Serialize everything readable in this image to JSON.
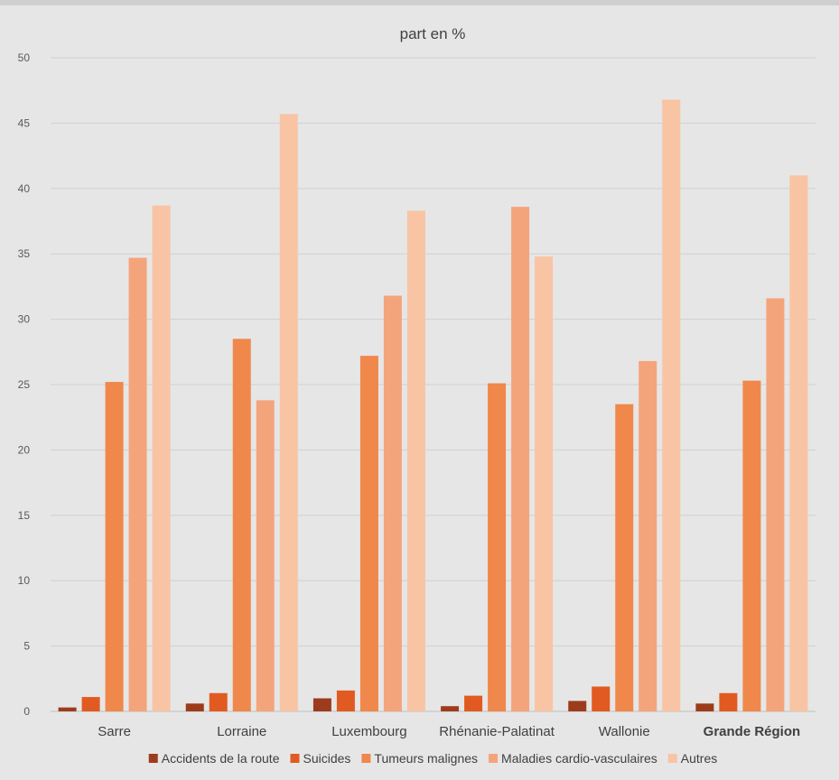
{
  "chart_data": {
    "type": "bar",
    "title": "part en %",
    "categories": [
      "Sarre",
      "Lorraine",
      "Luxembourg",
      "Rhénanie-Palatinat",
      "Wallonie",
      "Grande Région"
    ],
    "bold_categories": [
      "Grande Région"
    ],
    "ylim": [
      0,
      50
    ],
    "yticks": [
      0,
      5,
      10,
      15,
      20,
      25,
      30,
      35,
      40,
      45,
      50
    ],
    "grid": true,
    "legend_position": "bottom",
    "series": [
      {
        "name": "Accidents de la route",
        "color": "#9c3c1c",
        "values": [
          0.3,
          0.6,
          1.0,
          0.4,
          0.8,
          0.6
        ]
      },
      {
        "name": "Suicides",
        "color": "#e15a21",
        "values": [
          1.1,
          1.4,
          1.6,
          1.2,
          1.9,
          1.4
        ]
      },
      {
        "name": "Tumeurs malignes",
        "color": "#f0874b",
        "values": [
          25.2,
          28.5,
          27.2,
          25.1,
          23.5,
          25.3
        ]
      },
      {
        "name": "Maladies cardio-vasculaires",
        "color": "#f4a47b",
        "values": [
          34.7,
          23.8,
          31.8,
          38.6,
          26.8,
          31.6
        ]
      },
      {
        "name": "Autres",
        "color": "#f8c4a3",
        "values": [
          38.7,
          45.7,
          38.3,
          34.8,
          46.8,
          41.0
        ]
      }
    ]
  }
}
